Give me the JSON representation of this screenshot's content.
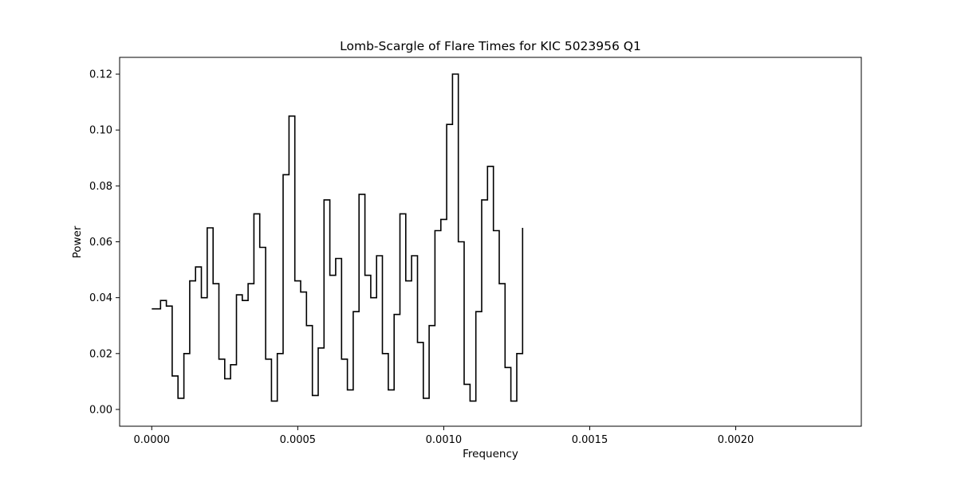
{
  "chart_data": {
    "type": "line",
    "title": "Lomb-Scargle of Flare Times for KIC 5023956 Q1",
    "xlabel": "Frequency",
    "ylabel": "Power",
    "xlim": [
      -0.00011,
      0.00243
    ],
    "ylim": [
      -0.006,
      0.126
    ],
    "xticks": [
      0.0,
      0.0005,
      0.001,
      0.0015,
      0.002
    ],
    "xtick_labels": [
      "0.0000",
      "0.0005",
      "0.0010",
      "0.0015",
      "0.0020"
    ],
    "yticks": [
      0.0,
      0.02,
      0.04,
      0.06,
      0.08,
      0.1,
      0.12
    ],
    "ytick_labels": [
      "0.00",
      "0.02",
      "0.04",
      "0.06",
      "0.08",
      "0.10",
      "0.12"
    ],
    "grid": false,
    "legend": "none",
    "line_color": "#000000",
    "series": [
      {
        "values": [
          [
            0.0,
            0.036
          ],
          [
            3e-05,
            0.039
          ],
          [
            5e-05,
            0.037
          ],
          [
            7e-05,
            0.012
          ],
          [
            9e-05,
            0.004
          ],
          [
            0.00011,
            0.02
          ],
          [
            0.00013,
            0.046
          ],
          [
            0.00015,
            0.051
          ],
          [
            0.00017,
            0.04
          ],
          [
            0.00019,
            0.065
          ],
          [
            0.00021,
            0.045
          ],
          [
            0.00023,
            0.018
          ],
          [
            0.00025,
            0.011
          ],
          [
            0.00027,
            0.016
          ],
          [
            0.00029,
            0.041
          ],
          [
            0.00031,
            0.039
          ],
          [
            0.00033,
            0.045
          ],
          [
            0.00035,
            0.07
          ],
          [
            0.00037,
            0.058
          ],
          [
            0.00039,
            0.018
          ],
          [
            0.00041,
            0.003
          ],
          [
            0.00043,
            0.02
          ],
          [
            0.00045,
            0.084
          ],
          [
            0.00047,
            0.105
          ],
          [
            0.00049,
            0.046
          ],
          [
            0.00051,
            0.042
          ],
          [
            0.00053,
            0.03
          ],
          [
            0.00055,
            0.005
          ],
          [
            0.00057,
            0.022
          ],
          [
            0.00059,
            0.075
          ],
          [
            0.00061,
            0.048
          ],
          [
            0.00063,
            0.054
          ],
          [
            0.00065,
            0.018
          ],
          [
            0.00067,
            0.007
          ],
          [
            0.00069,
            0.035
          ],
          [
            0.00071,
            0.077
          ],
          [
            0.00073,
            0.048
          ],
          [
            0.00075,
            0.04
          ],
          [
            0.00077,
            0.055
          ],
          [
            0.00079,
            0.02
          ],
          [
            0.00081,
            0.007
          ],
          [
            0.00083,
            0.034
          ],
          [
            0.00085,
            0.07
          ],
          [
            0.00087,
            0.046
          ],
          [
            0.00089,
            0.055
          ],
          [
            0.00091,
            0.024
          ],
          [
            0.00093,
            0.004
          ],
          [
            0.00095,
            0.03
          ],
          [
            0.00097,
            0.064
          ],
          [
            0.00099,
            0.068
          ],
          [
            0.00101,
            0.102
          ],
          [
            0.00103,
            0.12
          ],
          [
            0.00105,
            0.06
          ],
          [
            0.00107,
            0.009
          ],
          [
            0.00109,
            0.003
          ],
          [
            0.00111,
            0.035
          ],
          [
            0.00113,
            0.075
          ],
          [
            0.00115,
            0.087
          ],
          [
            0.00117,
            0.064
          ],
          [
            0.00119,
            0.045
          ],
          [
            0.00121,
            0.015
          ],
          [
            0.00123,
            0.003
          ],
          [
            0.00125,
            0.02
          ],
          [
            0.00127,
            0.065
          ]
        ]
      }
    ]
  }
}
